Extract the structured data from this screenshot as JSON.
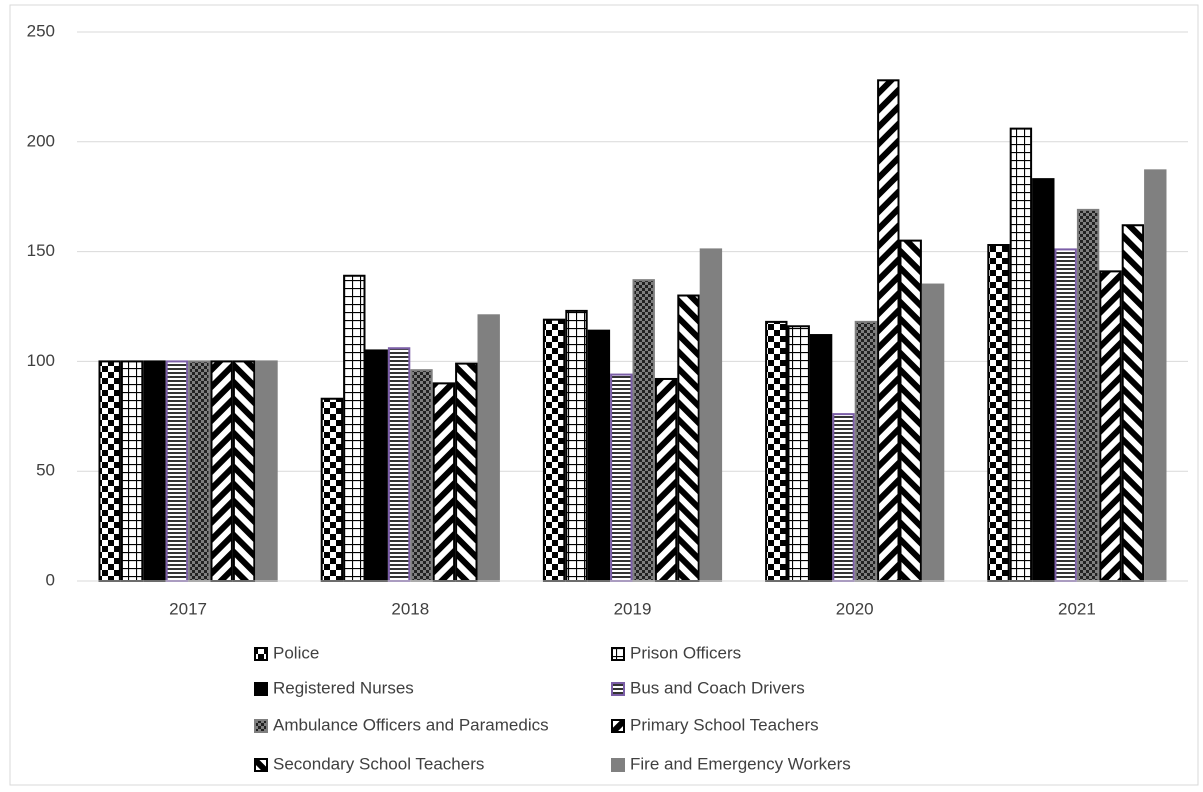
{
  "chart_data": {
    "type": "bar",
    "categories": [
      "2017",
      "2018",
      "2019",
      "2020",
      "2021"
    ],
    "series": [
      {
        "name": "Police",
        "color": "#000000",
        "values": [
          100,
          83,
          119,
          118,
          153
        ]
      },
      {
        "name": "Prison Officers",
        "color": "#000000",
        "values": [
          100,
          139,
          123,
          116,
          206
        ]
      },
      {
        "name": "Registered Nurses",
        "color": "#000000",
        "values": [
          100,
          105,
          114,
          112,
          183
        ]
      },
      {
        "name": "Bus and Coach Drivers",
        "color": "#7b5ea7",
        "values": [
          100,
          106,
          94,
          76,
          151
        ]
      },
      {
        "name": "Ambulance Officers and Paramedics",
        "color": "#7f7f7f",
        "values": [
          100,
          96,
          137,
          118,
          169
        ]
      },
      {
        "name": "Primary School Teachers",
        "color": "#000000",
        "values": [
          100,
          90,
          92,
          228,
          141
        ]
      },
      {
        "name": "Secondary School Teachers",
        "color": "#000000",
        "values": [
          100,
          99,
          130,
          155,
          162
        ]
      },
      {
        "name": "Fire and Emergency Workers",
        "color": "#808080",
        "values": [
          100,
          121,
          151,
          135,
          187
        ]
      }
    ],
    "ylim": [
      0,
      250
    ],
    "yticks": [
      0,
      50,
      100,
      150,
      200,
      250
    ],
    "grid": true,
    "legend": "bottom"
  }
}
